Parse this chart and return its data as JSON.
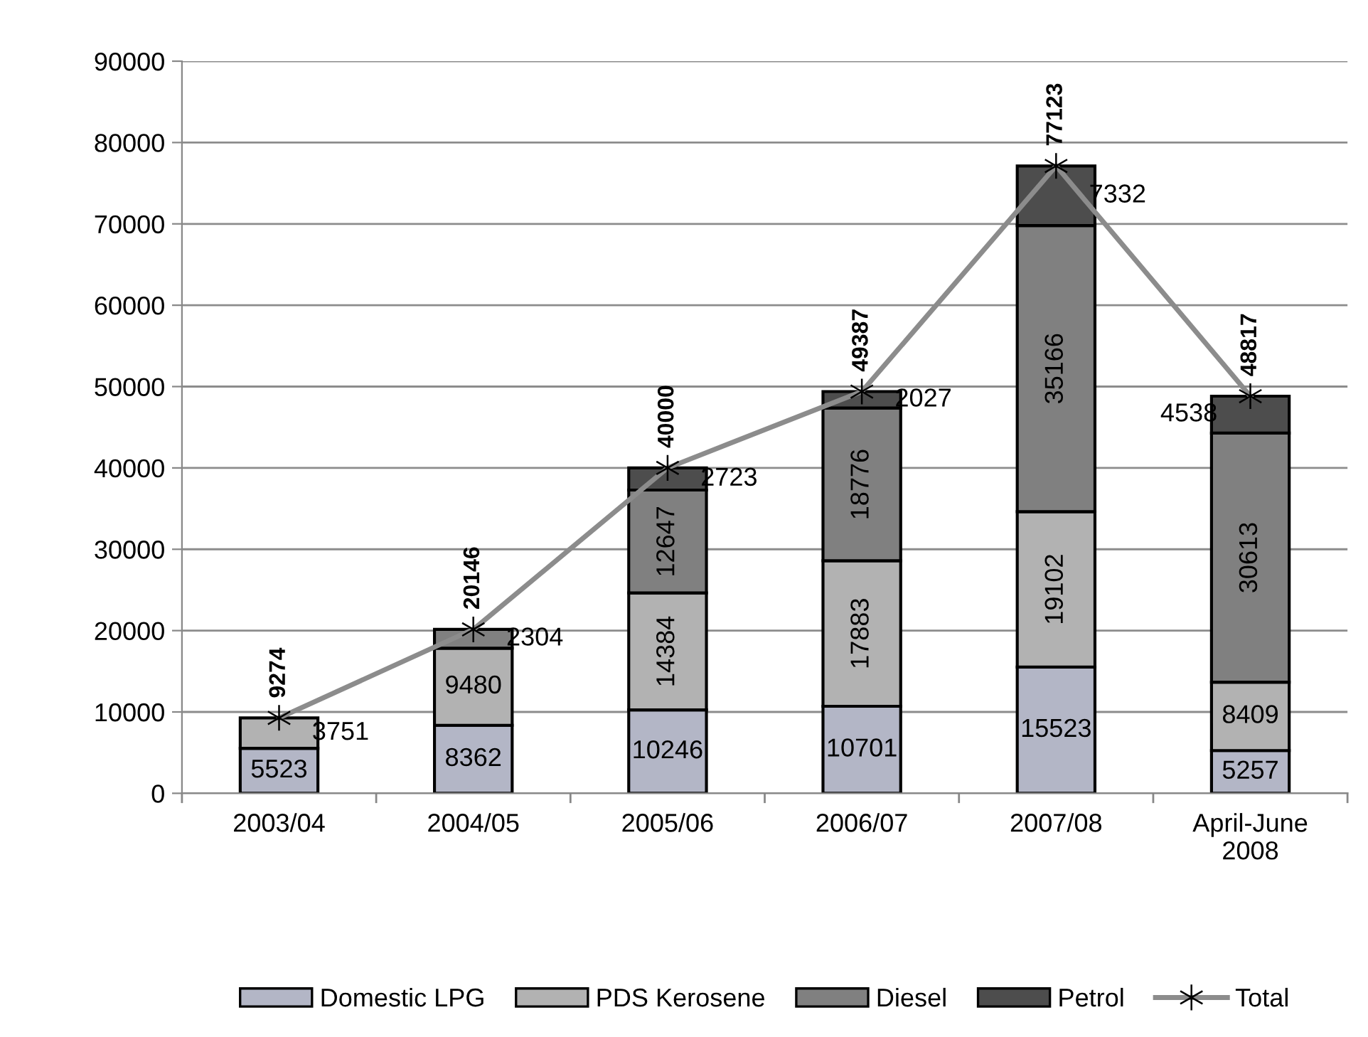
{
  "chart_data": {
    "type": "bar",
    "stacked": true,
    "categories": [
      "2003/04",
      "2004/05",
      "2005/06",
      "2006/07",
      "2007/08",
      "April-June 2008"
    ],
    "series": [
      {
        "name": "Domestic LPG",
        "color": "#b3b6c6",
        "values": [
          5523,
          8362,
          10246,
          10701,
          15523,
          5257
        ]
      },
      {
        "name": "PDS Kerosene",
        "color": "#b2b2b2",
        "values": [
          3751,
          9480,
          14384,
          17883,
          19102,
          8409
        ]
      },
      {
        "name": "Diesel",
        "color": "#808080",
        "values": [
          null,
          2304,
          12647,
          18776,
          35166,
          30613
        ]
      },
      {
        "name": "Petrol",
        "color": "#4d4d4d",
        "values": [
          null,
          null,
          2723,
          2027,
          7332,
          4538
        ]
      },
      {
        "name": "Total",
        "type": "line",
        "color": "#8c8c8c",
        "marker": "cross",
        "values": [
          9274,
          20146,
          40000,
          49387,
          77123,
          48817
        ]
      }
    ],
    "ylim": [
      0,
      90000
    ],
    "yticks": [
      0,
      10000,
      20000,
      30000,
      40000,
      50000,
      60000,
      70000,
      80000,
      90000
    ],
    "grid": "y",
    "legend": "bottom",
    "data_labels": true
  }
}
